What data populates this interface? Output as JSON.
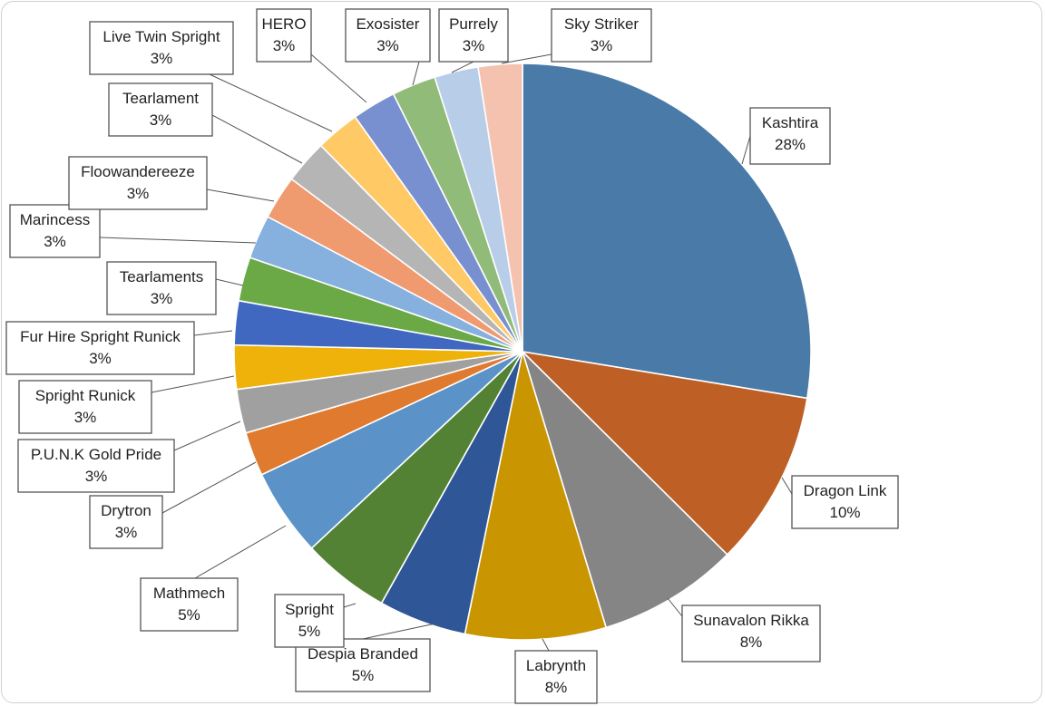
{
  "chart_data": {
    "type": "pie",
    "title": "",
    "slices": [
      {
        "name": "Kashtira",
        "value": 28,
        "label": "28%",
        "color": "#4a7aa8"
      },
      {
        "name": "Dragon Link",
        "value": 10,
        "label": "10%",
        "color": "#be5f25"
      },
      {
        "name": "Sunavalon Rikka",
        "value": 8,
        "label": "8%",
        "color": "#858585"
      },
      {
        "name": "Labrynth",
        "value": 8,
        "label": "8%",
        "color": "#c99500"
      },
      {
        "name": "Despia Branded",
        "value": 5,
        "label": "5%",
        "color": "#2f5696"
      },
      {
        "name": "Spright",
        "value": 5,
        "label": "5%",
        "color": "#548235"
      },
      {
        "name": "Mathmech",
        "value": 5,
        "label": "5%",
        "color": "#5b93c8"
      },
      {
        "name": "Drytron",
        "value": 2.5,
        "label": "3%",
        "color": "#e07a2e"
      },
      {
        "name": "P.U.N.K Gold Pride",
        "value": 2.5,
        "label": "3%",
        "color": "#a0a0a0"
      },
      {
        "name": "Spright Runick",
        "value": 2.5,
        "label": "3%",
        "color": "#efb20a"
      },
      {
        "name": "Fur Hire Spright Runick",
        "value": 2.5,
        "label": "3%",
        "color": "#4068c0"
      },
      {
        "name": "Tearlaments",
        "value": 2.5,
        "label": "3%",
        "color": "#6aa946"
      },
      {
        "name": "Marincess",
        "value": 2.5,
        "label": "3%",
        "color": "#86b0de"
      },
      {
        "name": "Floowandereeze",
        "value": 2.5,
        "label": "3%",
        "color": "#f09a70"
      },
      {
        "name": "Tearlament",
        "value": 2.5,
        "label": "3%",
        "color": "#b5b5b5"
      },
      {
        "name": "Live Twin Spright",
        "value": 2.5,
        "label": "3%",
        "color": "#ffc966"
      },
      {
        "name": "HERO",
        "value": 2.5,
        "label": "3%",
        "color": "#7890d0"
      },
      {
        "name": "Exosister",
        "value": 2.5,
        "label": "3%",
        "color": "#91bb78"
      },
      {
        "name": "Purrely",
        "value": 2.5,
        "label": "3%",
        "color": "#b8cde8"
      },
      {
        "name": "Sky Striker",
        "value": 2.5,
        "label": "3%",
        "color": "#f5c2b0"
      }
    ],
    "legend": "none",
    "data_labels": "category name and percentage with leader lines"
  }
}
